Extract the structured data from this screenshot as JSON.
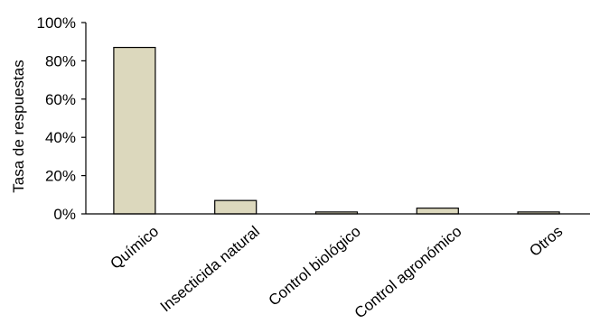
{
  "chart_data": {
    "type": "bar",
    "title": "",
    "xlabel": "",
    "ylabel": "Tasa de respuestas",
    "categories": [
      "Químico",
      "Insecticida natural",
      "Control biológico",
      "Control agronómico",
      "Otros"
    ],
    "values": [
      87,
      7,
      1,
      3,
      1
    ],
    "ylim": [
      0,
      100
    ],
    "yticks": [
      0,
      20,
      40,
      60,
      80,
      100
    ],
    "ytick_labels": [
      "0%",
      "20%",
      "40%",
      "60%",
      "80%",
      "100%"
    ],
    "grid": false,
    "legend": "none",
    "bar_color": "#dcd8bd"
  }
}
